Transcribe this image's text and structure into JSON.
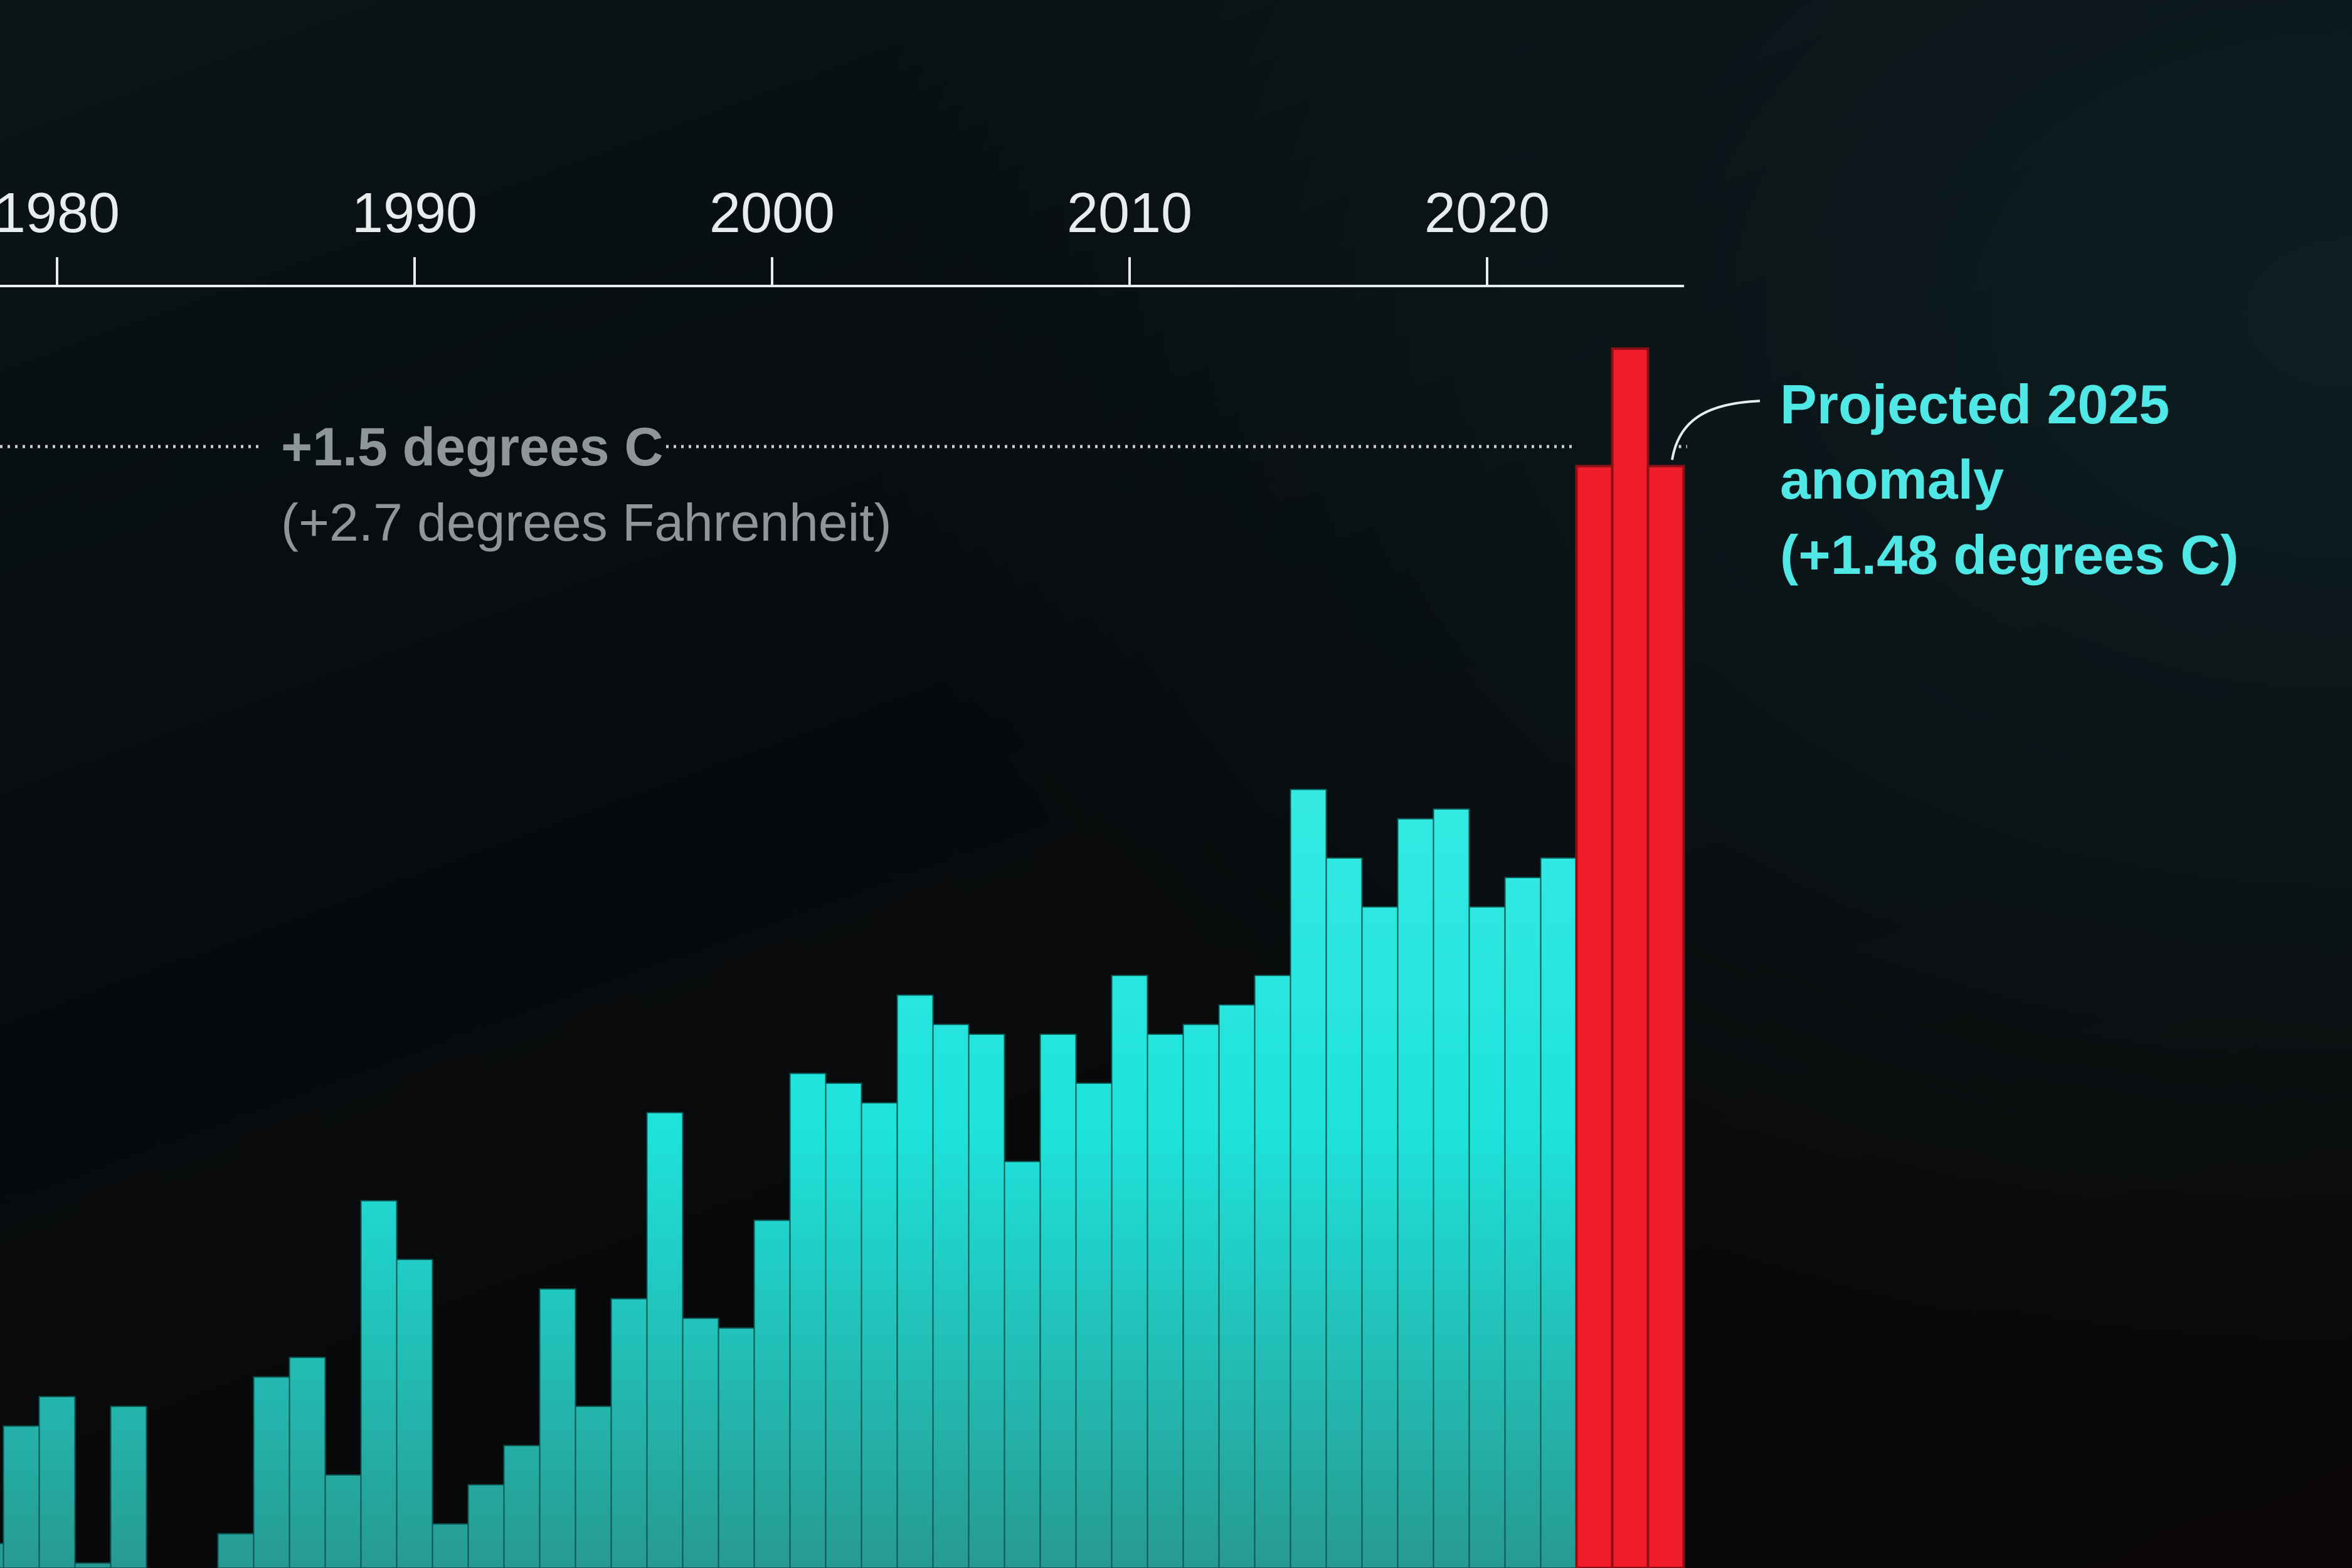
{
  "colors": {
    "background": "#070a0c",
    "bar_top": "#45efe9",
    "bar_bottom": "#269a92",
    "bar_highlight": "#ef1c2a",
    "annotation": "#4fe8e6",
    "reference_text": "#8f9698",
    "axis": "#e8ecec"
  },
  "chart_data": {
    "type": "bar",
    "xaxis_position": "top",
    "grid": false,
    "xticks": [
      "1980",
      "1990",
      "2000",
      "2010",
      "2020"
    ],
    "xlim": [
      1978.3,
      2025.5
    ],
    "ylim": [
      0.355,
      1.7
    ],
    "x": [
      1978,
      1979,
      1980,
      1981,
      1982,
      1983,
      1984,
      1985,
      1986,
      1987,
      1988,
      1989,
      1990,
      1991,
      1992,
      1993,
      1994,
      1995,
      1996,
      1997,
      1998,
      1999,
      2000,
      2001,
      2002,
      2003,
      2004,
      2005,
      2006,
      2007,
      2008,
      2009,
      2010,
      2011,
      2012,
      2013,
      2014,
      2015,
      2016,
      2017,
      2018,
      2019,
      2020,
      2021,
      2022,
      2023,
      2024,
      2025
    ],
    "values": [
      0.38,
      0.5,
      0.53,
      0.36,
      0.52,
      0.35,
      0.3,
      0.39,
      0.55,
      0.57,
      0.45,
      0.73,
      0.67,
      0.4,
      0.44,
      0.48,
      0.64,
      0.52,
      0.63,
      0.82,
      0.61,
      0.6,
      0.71,
      0.86,
      0.85,
      0.83,
      0.94,
      0.91,
      0.9,
      0.77,
      0.9,
      0.85,
      0.96,
      0.9,
      0.91,
      0.93,
      0.96,
      1.15,
      1.08,
      1.03,
      1.12,
      1.13,
      1.03,
      1.06,
      1.08,
      1.48,
      1.6,
      1.48
    ],
    "highlight": [
      2023,
      2024,
      2025
    ],
    "reference_line": {
      "value": 1.5,
      "label": "+1.5 degrees C",
      "sublabel": "(+2.7 degrees Fahrenheit)"
    },
    "annotation": {
      "year": 2025,
      "lines": [
        "Projected 2025",
        "anomaly",
        "(+1.48 degrees C)"
      ]
    }
  }
}
